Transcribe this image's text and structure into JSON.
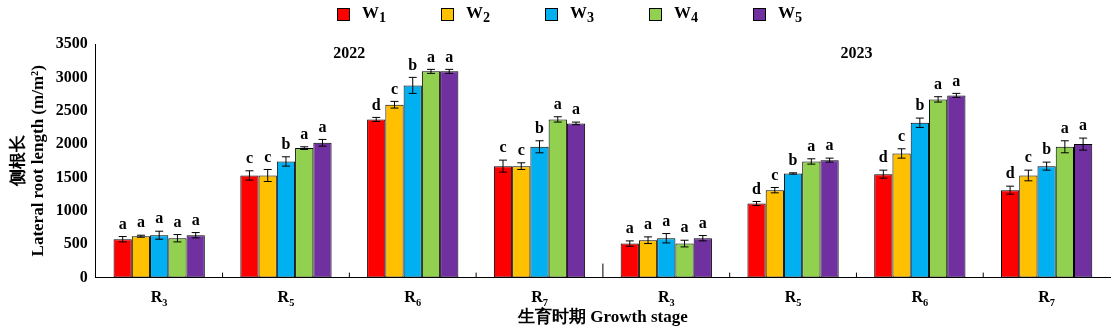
{
  "chart_data": {
    "type": "bar",
    "categories": [
      "R$_{3}$",
      "R$_{5}$",
      "R$_{6}$",
      "R$_{7}$",
      "R$_{3}$",
      "R$_{5}$",
      "R$_{6}$",
      "R$_{7}$"
    ],
    "series": [
      {
        "name": "W$_{1}$",
        "color": "#ff0000",
        "values": [
          575,
          1530,
          2370,
          1670,
          510,
          1110,
          1550,
          1310
        ],
        "errors": [
          40,
          70,
          30,
          90,
          40,
          30,
          60,
          60
        ],
        "value_labels": [
          "a",
          "c",
          "d",
          "c",
          "a",
          "d",
          "d",
          "d"
        ]
      },
      {
        "name": "W$_{2}$",
        "color": "#ffc000",
        "values": [
          620,
          1530,
          2590,
          1670,
          560,
          1310,
          1860,
          1530
        ],
        "errors": [
          15,
          90,
          50,
          50,
          50,
          40,
          70,
          80
        ],
        "value_labels": [
          "a",
          "c",
          "c",
          "c",
          "a",
          "c",
          "c",
          "c"
        ]
      },
      {
        "name": "W$_{3}$",
        "color": "#00b0f0",
        "values": [
          635,
          1740,
          2880,
          1960,
          590,
          1560,
          2320,
          1670
        ],
        "errors": [
          60,
          70,
          120,
          90,
          70,
          10,
          70,
          60
        ],
        "value_labels": [
          "a",
          "b",
          "b",
          "b",
          "a",
          "b",
          "b",
          "b"
        ]
      },
      {
        "name": "W$_{4}$",
        "color": "#92d050",
        "values": [
          590,
          1940,
          3090,
          2370,
          510,
          1740,
          2670,
          1960
        ],
        "errors": [
          55,
          20,
          30,
          40,
          50,
          40,
          40,
          90
        ],
        "value_labels": [
          "a",
          "a",
          "a",
          "a",
          "a",
          "a",
          "a",
          "a"
        ]
      },
      {
        "name": "W$_{5}$",
        "color": "#7030a0",
        "values": [
          635,
          2020,
          3090,
          2310,
          590,
          1760,
          2730,
          2000
        ],
        "errors": [
          40,
          50,
          30,
          20,
          40,
          30,
          30,
          90
        ],
        "value_labels": [
          "a",
          "a",
          "a",
          "a",
          "a",
          "a",
          "a",
          "a"
        ]
      }
    ],
    "xlabel": "生育时期 Growth stage",
    "ylabel": "侧根长\nLateral root length (m/m²)",
    "annotations": [
      "2022",
      "2023"
    ],
    "ylim": [
      0,
      3500
    ],
    "yticks": [
      0,
      500,
      1000,
      1500,
      2000,
      2500,
      3000,
      3500
    ],
    "grid": false,
    "legend": "top"
  }
}
